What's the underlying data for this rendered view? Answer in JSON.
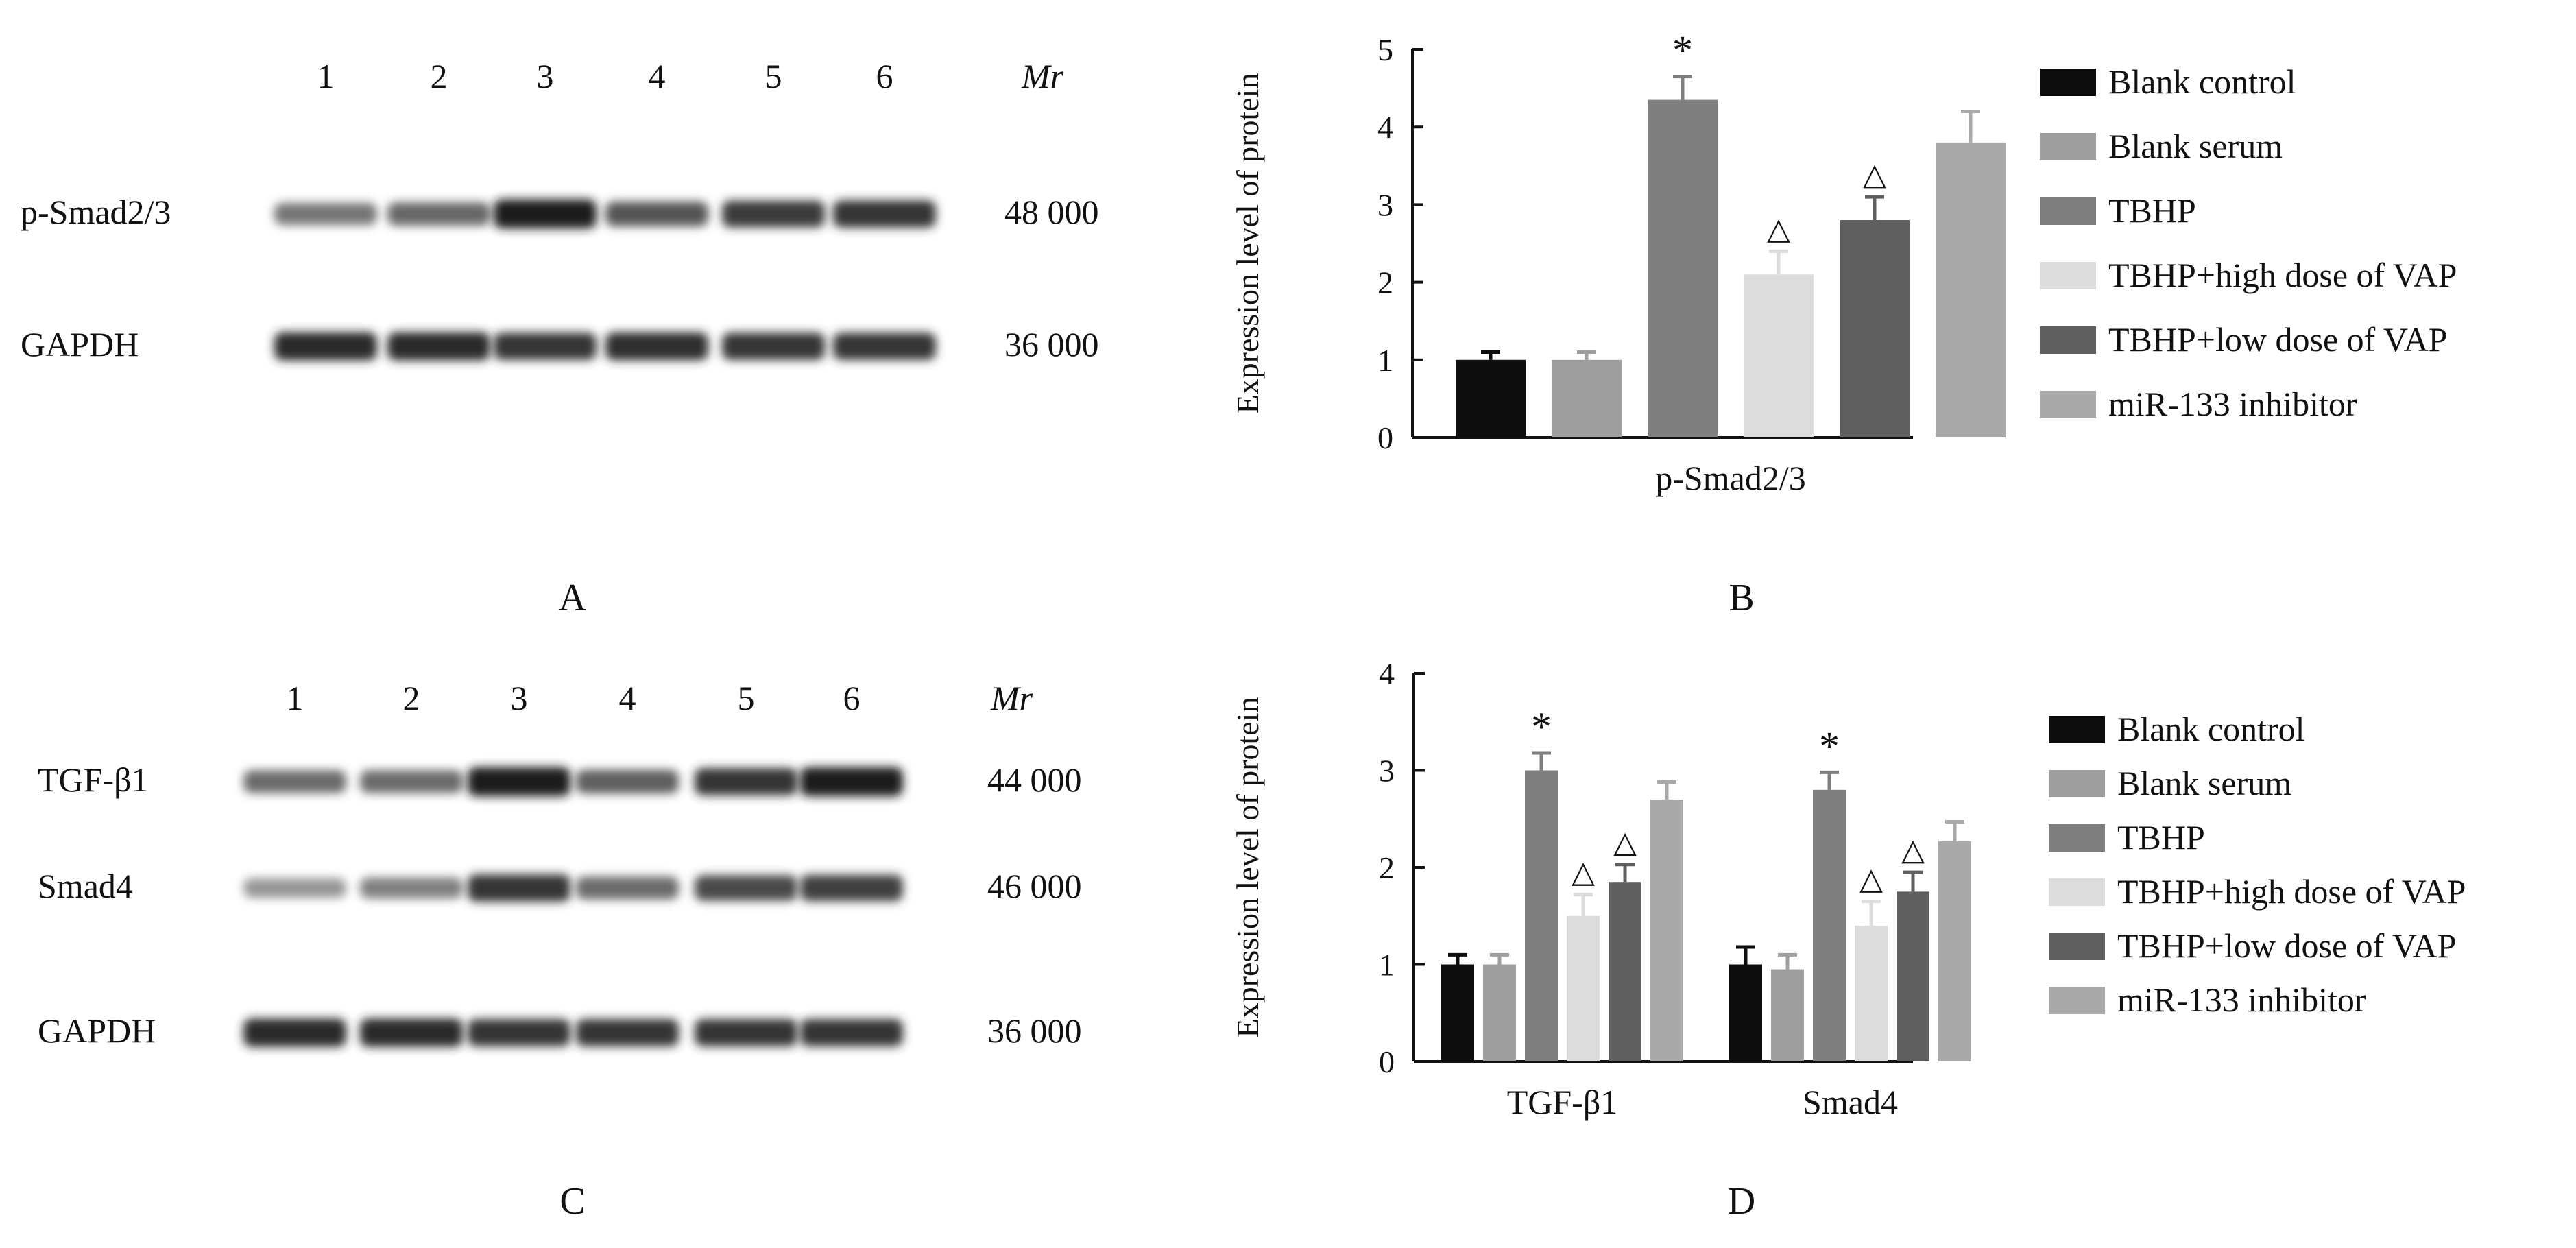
{
  "colors": {
    "blank_control": "#0d0d0d",
    "blank_serum": "#9e9e9e",
    "tbhp": "#7f7f7f",
    "tbhp_high": "#dcdcdc",
    "tbhp_low": "#5f5f5f",
    "mir133": "#a9a9a9"
  },
  "blot_a": {
    "letter": "A",
    "lanes": [
      "1",
      "2",
      "3",
      "4",
      "5",
      "6"
    ],
    "mr_label": "Mr",
    "rows": [
      {
        "label": "p-Smad2/3",
        "mr": "48 000",
        "intensity": [
          0.55,
          0.62,
          0.95,
          0.7,
          0.82,
          0.85
        ]
      },
      {
        "label": "GAPDH",
        "mr": "36 000",
        "intensity": [
          0.9,
          0.9,
          0.85,
          0.88,
          0.85,
          0.85
        ]
      }
    ]
  },
  "blot_c": {
    "letter": "C",
    "lanes": [
      "1",
      "2",
      "3",
      "4",
      "5",
      "6"
    ],
    "mr_label": "Mr",
    "rows": [
      {
        "label": "TGF-β1",
        "mr": "44 000",
        "intensity": [
          0.6,
          0.6,
          0.95,
          0.65,
          0.85,
          0.95
        ]
      },
      {
        "label": "Smad4",
        "mr": "46 000",
        "intensity": [
          0.4,
          0.5,
          0.85,
          0.6,
          0.75,
          0.8
        ]
      },
      {
        "label": "GAPDH",
        "mr": "36 000",
        "intensity": [
          0.9,
          0.9,
          0.85,
          0.85,
          0.85,
          0.85
        ]
      }
    ]
  },
  "chart_data": [
    {
      "type": "bar",
      "letter": "B",
      "title": "",
      "xlabel": "p-Smad2/3",
      "ylabel": "Expression level of protein",
      "ylim": [
        0,
        5
      ],
      "yticks": [
        "0",
        "1",
        "2",
        "3",
        "4",
        "5"
      ],
      "grid": false,
      "legend": "right",
      "categories": [
        "p-Smad2/3"
      ],
      "series": [
        {
          "name": "Blank control",
          "values": [
            1.0
          ],
          "error": [
            0.1
          ],
          "mark": ""
        },
        {
          "name": "Blank serum",
          "values": [
            1.0
          ],
          "error": [
            0.1
          ],
          "mark": ""
        },
        {
          "name": "TBHP",
          "values": [
            4.35
          ],
          "error": [
            0.3
          ],
          "mark": "*"
        },
        {
          "name": "TBHP+high dose of VAP",
          "values": [
            2.1
          ],
          "error": [
            0.3
          ],
          "mark": "△"
        },
        {
          "name": "TBHP+low dose of VAP",
          "values": [
            2.8
          ],
          "error": [
            0.3
          ],
          "mark": "△"
        },
        {
          "name": "miR-133 inhibitor",
          "values": [
            3.8
          ],
          "error": [
            0.4
          ],
          "mark": ""
        }
      ]
    },
    {
      "type": "bar",
      "letter": "D",
      "title": "",
      "xlabel": "",
      "ylabel": "Expression level of protein",
      "ylim": [
        0,
        4
      ],
      "yticks": [
        "0",
        "1",
        "2",
        "3",
        "4"
      ],
      "grid": false,
      "legend": "right",
      "categories": [
        "TGF-β1",
        "Smad4"
      ],
      "series": [
        {
          "name": "Blank control",
          "values": [
            1.0,
            1.0
          ],
          "error": [
            0.1,
            0.18
          ],
          "mark": ""
        },
        {
          "name": "Blank serum",
          "values": [
            1.0,
            0.95
          ],
          "error": [
            0.1,
            0.15
          ],
          "mark": ""
        },
        {
          "name": "TBHP",
          "values": [
            3.0,
            2.8
          ],
          "error": [
            0.18,
            0.18
          ],
          "mark": "*"
        },
        {
          "name": "TBHP+high dose of VAP",
          "values": [
            1.5,
            1.4
          ],
          "error": [
            0.22,
            0.25
          ],
          "mark": "△"
        },
        {
          "name": "TBHP+low dose of VAP",
          "values": [
            1.85,
            1.75
          ],
          "error": [
            0.18,
            0.2
          ],
          "mark": "△"
        },
        {
          "name": "miR-133 inhibitor",
          "values": [
            2.7,
            2.27
          ],
          "error": [
            0.18,
            0.2
          ],
          "mark": ""
        }
      ]
    }
  ]
}
